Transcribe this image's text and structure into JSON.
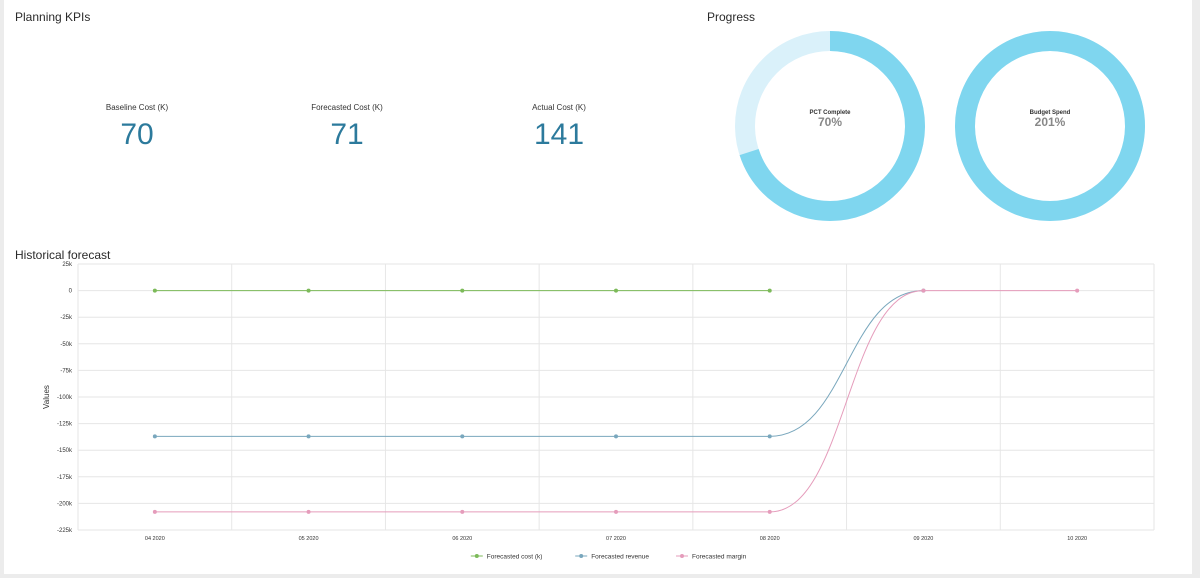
{
  "kpis": {
    "title": "Planning KPIs",
    "items": [
      {
        "label": "Baseline Cost (K)",
        "value": "70"
      },
      {
        "label": "Forecasted Cost (K)",
        "value": "71"
      },
      {
        "label": "Actual Cost (K)",
        "value": "141"
      }
    ]
  },
  "progress": {
    "title": "Progress",
    "donuts": [
      {
        "label": "PCT Complete",
        "value_text": "70%",
        "fraction": 0.7,
        "color": "#7fd6ef",
        "track_color": "#daf1fa"
      },
      {
        "label": "Budget Spend",
        "value_text": "201%",
        "fraction": 1.0,
        "color": "#7fd6ef",
        "track_color": "#daf1fa"
      }
    ]
  },
  "history": {
    "title": "Historical forecast"
  },
  "chart_data": {
    "type": "line",
    "title": "",
    "xlabel": "",
    "ylabel": "Values",
    "categories": [
      "04 2020",
      "05 2020",
      "06 2020",
      "07 2020",
      "08 2020",
      "09 2020",
      "10 2020"
    ],
    "y_ticks": [
      25000,
      0,
      -25000,
      -50000,
      -75000,
      -100000,
      -125000,
      -150000,
      -175000,
      -200000,
      -225000
    ],
    "y_tick_labels": [
      "25k",
      "0",
      "-25k",
      "-50k",
      "-75k",
      "-100k",
      "-125k",
      "-150k",
      "-175k",
      "-200k",
      "-225k"
    ],
    "ylim": [
      -225000,
      25000
    ],
    "grid": true,
    "legend_position": "bottom",
    "series": [
      {
        "name": "Forecasted cost (k)",
        "color": "#7cba59",
        "values": [
          0,
          0,
          0,
          0,
          0,
          null,
          null
        ]
      },
      {
        "name": "Forecasted revenue",
        "color": "#79a7bd",
        "values": [
          -137000,
          -137000,
          -137000,
          -137000,
          -137000,
          0,
          null
        ]
      },
      {
        "name": "Forecasted margin",
        "color": "#e59cbb",
        "values": [
          -208000,
          -208000,
          -208000,
          -208000,
          -208000,
          0,
          0
        ]
      }
    ]
  }
}
